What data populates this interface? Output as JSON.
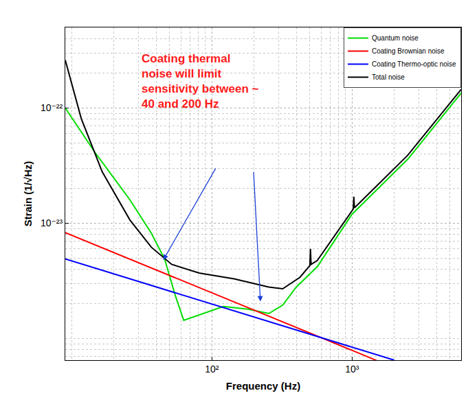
{
  "chart_data": {
    "type": "line",
    "log": true,
    "grid": true,
    "legend": "upper right",
    "x_label": "Frequency (Hz)",
    "y_label": "Strain (1/√Hz)",
    "xlim": [
      9,
      6000
    ],
    "ylim": [
      6.5e-25,
      5e-22
    ],
    "xticks": [
      {
        "value": 100,
        "label": "10²"
      },
      {
        "value": 1000,
        "label": "10³"
      }
    ],
    "yticks": [
      {
        "value": 1e-23,
        "label": "10⁻²³"
      },
      {
        "value": 1e-22,
        "label": "10⁻²²"
      }
    ],
    "annotation": {
      "text": "Coating thermal\nnoise will limit\nsensitivity between ~\n40 and 200 Hz",
      "arrows": [
        {
          "x": 45,
          "y": 4.8e-24
        },
        {
          "x": 222,
          "y": 2.1e-24
        }
      ]
    },
    "series": [
      {
        "name": "Quantum noise",
        "color": "#00dd00",
        "x": [
          9,
          14.7,
          26,
          37,
          46,
          54.6,
          63,
          81,
          121,
          181,
          255,
          320,
          400,
          565,
          1000,
          2500,
          6000
        ],
        "values": [
          1e-22,
          4.1e-23,
          1.6e-23,
          8.2e-24,
          4.9e-24,
          2.4e-24,
          1.44e-24,
          1.6e-24,
          1.9e-24,
          1.8e-24,
          1.65e-24,
          1.95e-24,
          2.8e-24,
          4.2e-24,
          1.2e-23,
          3.6e-23,
          1.35e-22
        ]
      },
      {
        "name": "Coating Brownian noise",
        "color": "#ff0000",
        "x": [
          9,
          100,
          1000,
          1500
        ],
        "values": [
          8.3e-24,
          2.5e-24,
          7.9e-25,
          6.45e-25
        ]
      },
      {
        "name": "Coating Thermo-optic noise",
        "color": "#0000ff",
        "x": [
          9,
          100,
          1000,
          2000
        ],
        "values": [
          4.9e-24,
          2e-24,
          8.4e-25,
          6.5e-25
        ]
      },
      {
        "name": "Total noise",
        "color": "#000000",
        "x": [
          9,
          11.7,
          16.5,
          26,
          37,
          51.7,
          81,
          144,
          255,
          320,
          425,
          500,
          505,
          510,
          565,
          1000,
          1020,
          1030,
          1040,
          2500,
          6000
        ],
        "values": [
          2.6e-22,
          8.1e-23,
          2.8e-23,
          1.07e-23,
          6.2e-24,
          4.4e-24,
          3.7e-24,
          3.3e-24,
          2.8e-24,
          2.7e-24,
          3.4e-24,
          4.3e-24,
          6e-24,
          4.4e-24,
          4.75e-24,
          1.3e-23,
          1.33e-23,
          1.7e-23,
          1.36e-23,
          3.9e-23,
          1.45e-22
        ]
      }
    ]
  }
}
